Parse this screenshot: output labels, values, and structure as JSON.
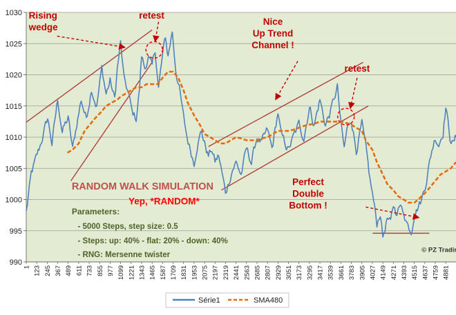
{
  "chart_data": {
    "type": "line",
    "title": "",
    "xlabel": "",
    "ylabel": "",
    "ylim": [
      990,
      1030
    ],
    "y_ticks": [
      990,
      995,
      1000,
      1005,
      1010,
      1015,
      1020,
      1025,
      1030
    ],
    "x_tick_labels": [
      "1",
      "123",
      "245",
      "367",
      "489",
      "611",
      "733",
      "855",
      "977",
      "1099",
      "1221",
      "1343",
      "1465",
      "1587",
      "1709",
      "1831",
      "1953",
      "2075",
      "2197",
      "2319",
      "2441",
      "2563",
      "2685",
      "2807",
      "2929",
      "3051",
      "3173",
      "3295",
      "3417",
      "3539",
      "3661",
      "3783",
      "3905",
      "4027",
      "4149",
      "4271",
      "4393",
      "4515",
      "4637",
      "4759",
      "4881"
    ],
    "grid": "horizontal",
    "legend_position": "bottom",
    "plot_background": "#e3ecd3",
    "series": [
      {
        "name": "Série1",
        "color": "#4f81bd",
        "points": [
          [
            1,
            998
          ],
          [
            60,
            1004
          ],
          [
            150,
            1008
          ],
          [
            250,
            1013
          ],
          [
            300,
            1009
          ],
          [
            367,
            1016
          ],
          [
            420,
            1011
          ],
          [
            489,
            1013
          ],
          [
            540,
            1008
          ],
          [
            600,
            1013
          ],
          [
            640,
            1016
          ],
          [
            700,
            1013
          ],
          [
            760,
            1018
          ],
          [
            820,
            1015
          ],
          [
            880,
            1021
          ],
          [
            930,
            1017
          ],
          [
            977,
            1019
          ],
          [
            1030,
            1016
          ],
          [
            1060,
            1021
          ],
          [
            1099,
            1025
          ],
          [
            1140,
            1019
          ],
          [
            1190,
            1017
          ],
          [
            1230,
            1014
          ],
          [
            1280,
            1013
          ],
          [
            1320,
            1018
          ],
          [
            1343,
            1023
          ],
          [
            1380,
            1021
          ],
          [
            1420,
            1023
          ],
          [
            1465,
            1021
          ],
          [
            1500,
            1024
          ],
          [
            1540,
            1018
          ],
          [
            1587,
            1023
          ],
          [
            1620,
            1026
          ],
          [
            1650,
            1023
          ],
          [
            1700,
            1027
          ],
          [
            1740,
            1021
          ],
          [
            1780,
            1018
          ],
          [
            1831,
            1013
          ],
          [
            1870,
            1010
          ],
          [
            1910,
            1008
          ],
          [
            1953,
            1006
          ],
          [
            1990,
            1009
          ],
          [
            2040,
            1011
          ],
          [
            2075,
            1009
          ],
          [
            2120,
            1007
          ],
          [
            2160,
            1008
          ],
          [
            2197,
            1006
          ],
          [
            2240,
            1007
          ],
          [
            2280,
            1004
          ],
          [
            2319,
            1001
          ],
          [
            2360,
            1003
          ],
          [
            2400,
            1005
          ],
          [
            2441,
            1006
          ],
          [
            2500,
            1004
          ],
          [
            2563,
            1008
          ],
          [
            2620,
            1006
          ],
          [
            2685,
            1010
          ],
          [
            2740,
            1009
          ],
          [
            2807,
            1011
          ],
          [
            2860,
            1008
          ],
          [
            2929,
            1014
          ],
          [
            2970,
            1010
          ],
          [
            3051,
            1008
          ],
          [
            3110,
            1010
          ],
          [
            3173,
            1012
          ],
          [
            3230,
            1010
          ],
          [
            3295,
            1015
          ],
          [
            3350,
            1012
          ],
          [
            3417,
            1016
          ],
          [
            3480,
            1012
          ],
          [
            3539,
            1014
          ],
          [
            3580,
            1016
          ],
          [
            3620,
            1018
          ],
          [
            3661,
            1012
          ],
          [
            3700,
            1008
          ],
          [
            3730,
            1011
          ],
          [
            3783,
            1013
          ],
          [
            3840,
            1008
          ],
          [
            3905,
            1012
          ],
          [
            3950,
            1008
          ],
          [
            4000,
            1003
          ],
          [
            4027,
            1001
          ],
          [
            4080,
            996
          ],
          [
            4120,
            998
          ],
          [
            4149,
            994
          ],
          [
            4200,
            997
          ],
          [
            4240,
            996
          ],
          [
            4271,
            999
          ],
          [
            4300,
            998
          ],
          [
            4340,
            999
          ],
          [
            4393,
            998
          ],
          [
            4440,
            996
          ],
          [
            4480,
            995
          ],
          [
            4515,
            998
          ],
          [
            4560,
            999
          ],
          [
            4600,
            1000
          ],
          [
            4637,
            1002
          ],
          [
            4680,
            1005
          ],
          [
            4720,
            1008
          ],
          [
            4759,
            1010
          ],
          [
            4800,
            1009
          ],
          [
            4850,
            1011
          ],
          [
            4881,
            1015
          ],
          [
            4930,
            1010
          ],
          [
            4970,
            1009
          ],
          [
            5000,
            1010
          ]
        ]
      },
      {
        "name": "SMA480",
        "color": "#e46c0a",
        "points": [
          [
            480,
            1007.5
          ],
          [
            540,
            1008
          ],
          [
            611,
            1009
          ],
          [
            680,
            1011
          ],
          [
            740,
            1012
          ],
          [
            800,
            1013
          ],
          [
            870,
            1014
          ],
          [
            930,
            1015
          ],
          [
            990,
            1015.5
          ],
          [
            1060,
            1016
          ],
          [
            1099,
            1016.5
          ],
          [
            1160,
            1017
          ],
          [
            1221,
            1017.5
          ],
          [
            1280,
            1018
          ],
          [
            1343,
            1018
          ],
          [
            1400,
            1018.5
          ],
          [
            1465,
            1018.5
          ],
          [
            1530,
            1018.5
          ],
          [
            1587,
            1019.5
          ],
          [
            1650,
            1020.5
          ],
          [
            1709,
            1020.5
          ],
          [
            1770,
            1019.5
          ],
          [
            1831,
            1017.5
          ],
          [
            1880,
            1015.5
          ],
          [
            1953,
            1013.5
          ],
          [
            2020,
            1012
          ],
          [
            2075,
            1010.5
          ],
          [
            2140,
            1010
          ],
          [
            2197,
            1009.5
          ],
          [
            2260,
            1009
          ],
          [
            2319,
            1009
          ],
          [
            2380,
            1009.5
          ],
          [
            2441,
            1010
          ],
          [
            2500,
            1009.8
          ],
          [
            2563,
            1009.5
          ],
          [
            2620,
            1009.5
          ],
          [
            2685,
            1009.5
          ],
          [
            2740,
            1009.8
          ],
          [
            2807,
            1010
          ],
          [
            2870,
            1010.5
          ],
          [
            2929,
            1011
          ],
          [
            2990,
            1011
          ],
          [
            3051,
            1011
          ],
          [
            3110,
            1011.2
          ],
          [
            3173,
            1011.5
          ],
          [
            3230,
            1011.8
          ],
          [
            3295,
            1012
          ],
          [
            3360,
            1012.2
          ],
          [
            3417,
            1012.5
          ],
          [
            3480,
            1012.5
          ],
          [
            3539,
            1012.5
          ],
          [
            3600,
            1012.5
          ],
          [
            3661,
            1012.5
          ],
          [
            3720,
            1012.3
          ],
          [
            3783,
            1012
          ],
          [
            3840,
            1011.5
          ],
          [
            3905,
            1011
          ],
          [
            3950,
            1009.5
          ],
          [
            4027,
            1008
          ],
          [
            4080,
            1006
          ],
          [
            4149,
            1004
          ],
          [
            4200,
            1002.5
          ],
          [
            4271,
            1001.5
          ],
          [
            4330,
            1000.5
          ],
          [
            4393,
            1000
          ],
          [
            4440,
            999.5
          ],
          [
            4515,
            999.5
          ],
          [
            4560,
            1000
          ],
          [
            4637,
            1001
          ],
          [
            4700,
            1002
          ],
          [
            4759,
            1003
          ],
          [
            4820,
            1004
          ],
          [
            4881,
            1004.5
          ],
          [
            4940,
            1005
          ],
          [
            5000,
            1006
          ]
        ]
      }
    ],
    "annotations": [
      {
        "id": "rising-wedge",
        "text": "Rising\nwedge",
        "color": "#c00000",
        "x": 30,
        "y": 1029
      },
      {
        "id": "retest-1",
        "text": "retest",
        "color": "#c00000",
        "x": 1460,
        "y": 1029
      },
      {
        "id": "nice-up-trend",
        "text": "Nice\nUp Trend\nChannel !",
        "color": "#c00000",
        "x": 2870,
        "y": 1028
      },
      {
        "id": "retest-2",
        "text": "retest",
        "color": "#c00000",
        "x": 3850,
        "y": 1020.5
      },
      {
        "id": "random-walk-title",
        "text": "RANDOM WALK SIMULATION",
        "color": "#c0504d",
        "x": 530,
        "y": 1001.6
      },
      {
        "id": "yep-random",
        "text": "Yep, *RANDOM*",
        "color": "#ff0000",
        "x": 1190,
        "y": 999.2
      },
      {
        "id": "parameters",
        "text": "Parameters:",
        "color": "#4f6228",
        "x": 530,
        "y": 997.6
      },
      {
        "id": "param-steps",
        "text": "- 5000 Steps, step size: 0.5",
        "color": "#4f6228",
        "x": 600,
        "y": 995.3
      },
      {
        "id": "param-probs",
        "text": "- Steps: up: 40% - flat: 20% - down: 40%",
        "color": "#4f6228",
        "x": 600,
        "y": 993
      },
      {
        "id": "param-rng",
        "text": "- RNG: Mersenne twister",
        "color": "#4f6228",
        "x": 600,
        "y": 990.8
      },
      {
        "id": "perfect-double",
        "text": "Perfect\nDouble\nBottom !",
        "color": "#c00000",
        "x": 3280,
        "y": 1002.3
      },
      {
        "id": "copyright",
        "text": "© PZ Trading",
        "color": "#333333",
        "x": 4600,
        "y": 991.6
      }
    ],
    "trend_lines": [
      {
        "id": "wedge-upper",
        "from": [
          1,
          1012.4
        ],
        "to": [
          1465,
          1027.2
        ]
      },
      {
        "id": "wedge-lower",
        "from": [
          520,
          1003
        ],
        "to": [
          1465,
          1022
        ]
      },
      {
        "id": "channel-upper",
        "from": [
          2120,
          1008.5
        ],
        "to": [
          3920,
          1022
        ]
      },
      {
        "id": "channel-lower",
        "from": [
          2270,
          1001.5
        ],
        "to": [
          3980,
          1015
        ]
      },
      {
        "id": "double-bottom-support",
        "from": [
          4030,
          994.6
        ],
        "to": [
          4690,
          994.6
        ]
      }
    ],
    "retest_marks": [
      {
        "id": "retest-ellipse-1",
        "x": 1490,
        "y": 1024
      },
      {
        "id": "retest-ellipse-2",
        "x": 3720,
        "y": 1013.3
      }
    ],
    "arrows": [
      {
        "id": "arrow-wedge",
        "from": [
          360,
          1026.2
        ],
        "to": [
          1150,
          1024.4
        ]
      },
      {
        "id": "arrow-retest-1",
        "from": [
          1540,
          1028.5
        ],
        "to": [
          1500,
          1025.3
        ]
      },
      {
        "id": "arrow-trend",
        "from": [
          3160,
          1022.2
        ],
        "to": [
          2900,
          1016
        ]
      },
      {
        "id": "arrow-retest-2",
        "from": [
          3850,
          1019.5
        ],
        "to": [
          3770,
          1014.6
        ]
      },
      {
        "id": "arrow-double",
        "from": [
          3950,
          998.8
        ],
        "to": [
          4570,
          997.1
        ]
      }
    ]
  }
}
